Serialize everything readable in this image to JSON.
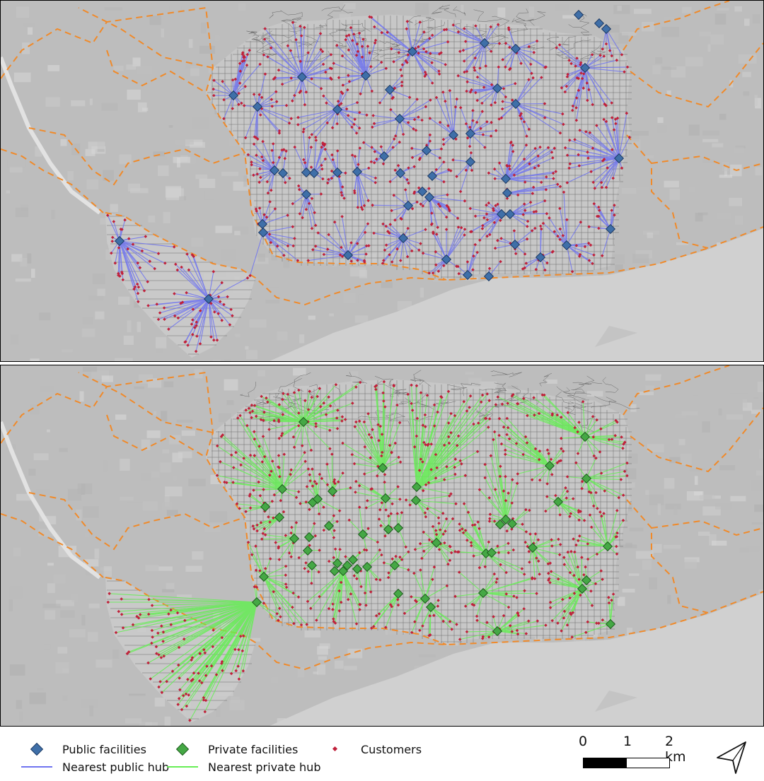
{
  "legend": {
    "public_facilities": "Public facilities",
    "private_facilities": "Private facilities",
    "customers": "Customers",
    "nearest_public_hub": "Nearest public hub",
    "nearest_private_hub": "Nearest private hub"
  },
  "scale_bar": {
    "labels": [
      "0",
      "1",
      "2 km"
    ]
  },
  "colors": {
    "public_facility": "#3f6fa8",
    "private_facility": "#45a845",
    "customer": "#c0203a",
    "public_link": "#6f74f0",
    "private_link": "#66ee55",
    "boundary": "#f08a2a",
    "sea": "#d4d4d4",
    "land": "#bcbcbc"
  },
  "icons": {
    "north": "north-arrow-icon"
  }
}
